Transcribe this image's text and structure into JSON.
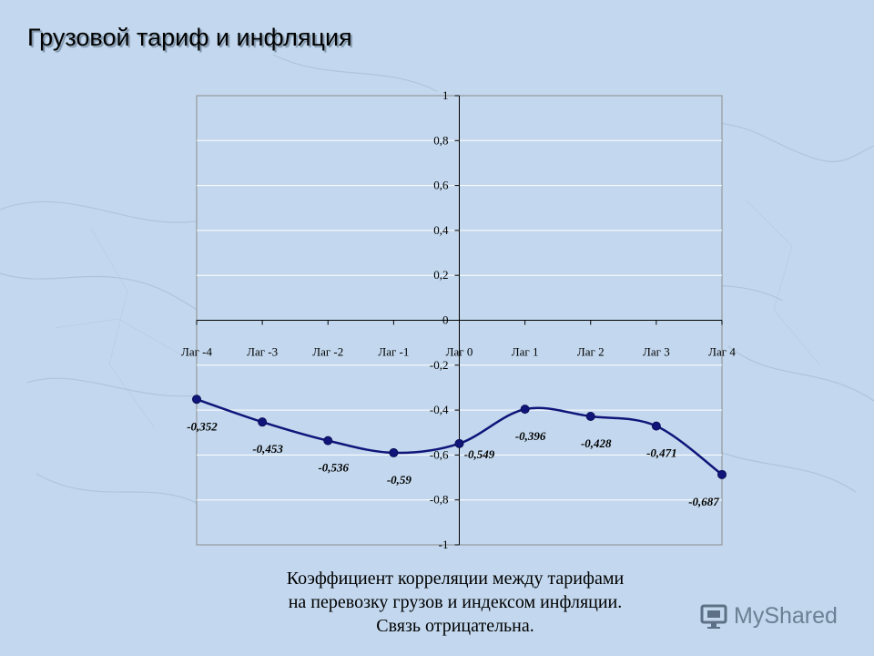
{
  "title": "Грузовой тариф и инфляция",
  "caption": {
    "line1": "Коэффициент корреляции между тарифами",
    "line2": "на перевозку грузов и индексом инфляции.",
    "line3": "Связь отрицательна."
  },
  "watermark": {
    "text": "MyShared",
    "icon": "monitor-icon"
  },
  "colors": {
    "series": "#10157a",
    "background": "#c3d8ee",
    "plot_area": "#c3d8ee",
    "gridline": "#ffffff"
  },
  "chart_data": {
    "type": "line",
    "categories": [
      "Лаг -4",
      "Лаг -3",
      "Лаг -2",
      "Лаг -1",
      "Лаг 0",
      "Лаг 1",
      "Лаг 2",
      "Лаг 3",
      "Лаг 4"
    ],
    "series": [
      {
        "values": [
          -0.352,
          -0.453,
          -0.536,
          -0.59,
          -0.549,
          -0.396,
          -0.428,
          -0.471,
          -0.687
        ],
        "labels": [
          "-0,352",
          "-0,453",
          "-0,536",
          "-0,59",
          "-0,549",
          "-0,396",
          "-0,428",
          "-0,471",
          "-0,687"
        ]
      }
    ],
    "ylim": [
      -1,
      1
    ],
    "yticks": [
      1,
      0.8,
      0.6,
      0.4,
      0.2,
      0,
      -0.2,
      -0.4,
      -0.6,
      -0.8,
      -1
    ],
    "ytick_labels": [
      "1",
      "0,8",
      "0,6",
      "0,4",
      "0,2",
      "0",
      "-0,2",
      "-0,4",
      "-0,6",
      "-0,8",
      "-1"
    ],
    "grid": true,
    "smooth": true,
    "markers": "circle",
    "xlabel": "",
    "ylabel": ""
  }
}
